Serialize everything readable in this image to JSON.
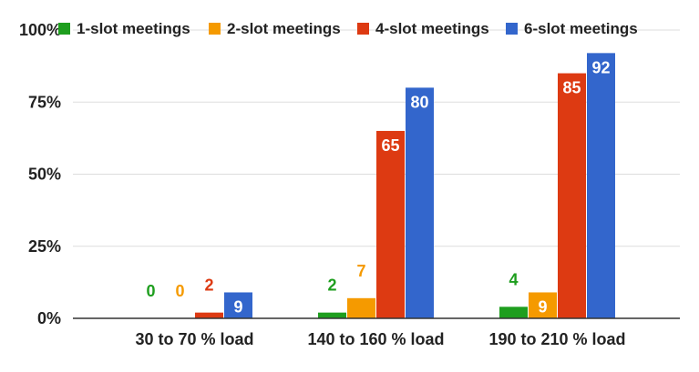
{
  "chart_data": {
    "type": "bar",
    "title": "",
    "xlabel": "",
    "ylabel": "",
    "categories": [
      "30 to 70 % load",
      "140 to 160 % load",
      "190 to 210 % load"
    ],
    "series": [
      {
        "name": "1-slot meetings",
        "color": "#1e9e1e",
        "values": [
          0,
          2,
          4
        ]
      },
      {
        "name": "2-slot meetings",
        "color": "#f59a00",
        "values": [
          0,
          7,
          9
        ]
      },
      {
        "name": "4-slot meetings",
        "color": "#dd3a12",
        "values": [
          2,
          65,
          85
        ]
      },
      {
        "name": "6-slot meetings",
        "color": "#3366cc",
        "values": [
          9,
          80,
          92
        ]
      }
    ],
    "ylim": [
      0,
      100
    ],
    "yticks": [
      0,
      25,
      50,
      75,
      100
    ],
    "ytick_labels": [
      "0%",
      "25%",
      "50%",
      "75%",
      "100%"
    ],
    "legend_position": "top",
    "grid": true
  }
}
